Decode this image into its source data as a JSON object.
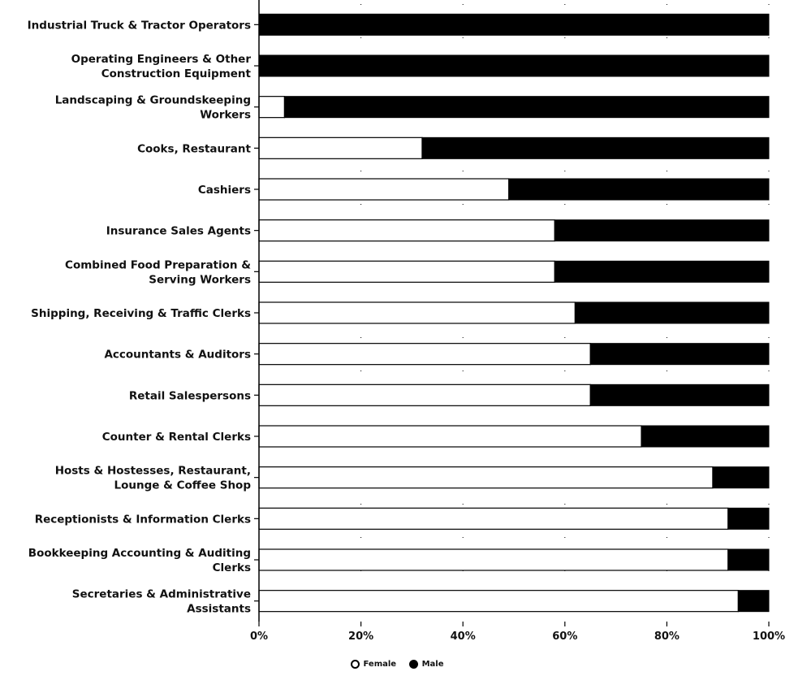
{
  "chart_data": {
    "type": "bar",
    "orientation": "horizontal",
    "stacked": true,
    "normalized": true,
    "categories": [
      "Industrial Truck & Tractor Operators",
      "Operating Engineers & Other Construction Equipment",
      "Landscaping & Groundskeeping Workers",
      "Cooks, Restaurant",
      "Cashiers",
      "Insurance Sales Agents",
      "Combined Food Preparation & Serving Workers",
      "Shipping, Receiving & Traffic Clerks",
      "Accountants & Auditors",
      "Retail Salespersons",
      "Counter & Rental Clerks",
      "Hosts & Hostesses, Restaurant, Lounge & Coffee Shop",
      "Receptionists & Information Clerks",
      "Bookkeeping Accounting & Auditing Clerks",
      "Secretaries & Administrative Assistants"
    ],
    "series": [
      {
        "name": "Female",
        "values": [
          0,
          0,
          5,
          32,
          49,
          58,
          58,
          62,
          65,
          65,
          75,
          89,
          92,
          92,
          94
        ]
      },
      {
        "name": "Male",
        "values": [
          100,
          100,
          95,
          68,
          51,
          42,
          42,
          38,
          35,
          35,
          25,
          11,
          8,
          8,
          6
        ]
      }
    ],
    "xlim": [
      0,
      100
    ],
    "x_ticks": [
      "0%",
      "20%",
      "40%",
      "60%",
      "80%",
      "100%"
    ],
    "grid": true,
    "legend_position": "bottom-center",
    "colors": {
      "Female": "#ffffff",
      "Male": "#000000",
      "outline": "#000000"
    }
  },
  "legend": {
    "female_label": "Female",
    "male_label": "Male"
  }
}
